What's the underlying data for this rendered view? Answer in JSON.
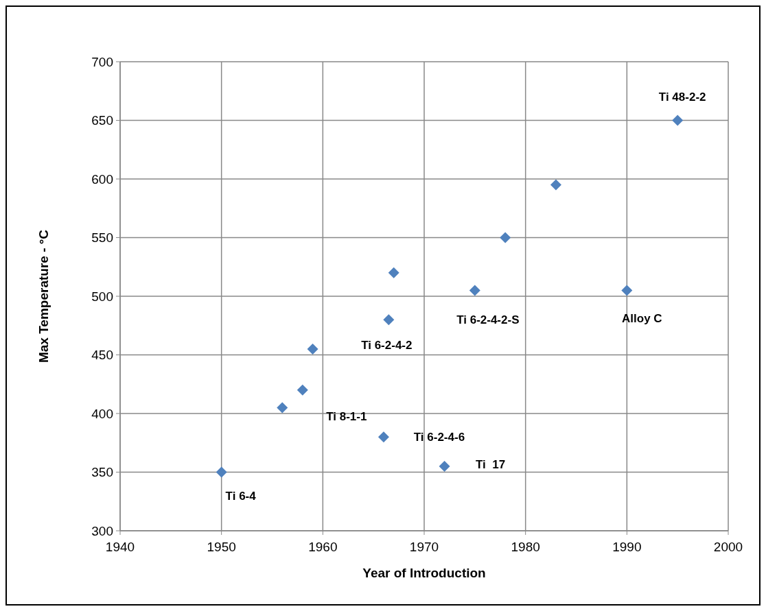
{
  "chart_data": {
    "type": "scatter",
    "xlabel": "Year of Introduction",
    "ylabel": "Max Temperature - °C",
    "x": [
      1950,
      1956,
      1958,
      1959,
      1966,
      1966.5,
      1967,
      1972,
      1975,
      1978,
      1983,
      1990,
      1995
    ],
    "series": [
      {
        "color": "#4f81bd",
        "values": [
          350,
          405,
          420,
          455,
          380,
          480,
          520,
          355,
          505,
          550,
          595,
          505,
          650
        ]
      }
    ],
    "xlim": [
      1940,
      2000
    ],
    "xticks": [
      1940,
      1950,
      1960,
      1970,
      1980,
      1990,
      2000
    ],
    "ylim": [
      300,
      700
    ],
    "yticks": [
      300,
      350,
      400,
      450,
      500,
      550,
      600,
      650,
      700
    ],
    "grid": true,
    "marker": "diamond",
    "annotations": [
      {
        "text": "Ti 6-4",
        "x": 1950,
        "y": 350
      },
      {
        "text": "Ti 8-1-1",
        "x": 1958,
        "y": 420
      },
      {
        "text": "Ti 6-2-4-6",
        "x": 1966,
        "y": 380
      },
      {
        "text": "Ti 6-2-4-2",
        "x": 1966.5,
        "y": 480
      },
      {
        "text": "Ti  17",
        "x": 1972,
        "y": 355
      },
      {
        "text": "Ti 6-2-4-2-S",
        "x": 1975,
        "y": 505
      },
      {
        "text": "Alloy C",
        "x": 1990,
        "y": 505
      },
      {
        "text": "Ti 48-2-2",
        "x": 1995,
        "y": 650
      }
    ]
  }
}
